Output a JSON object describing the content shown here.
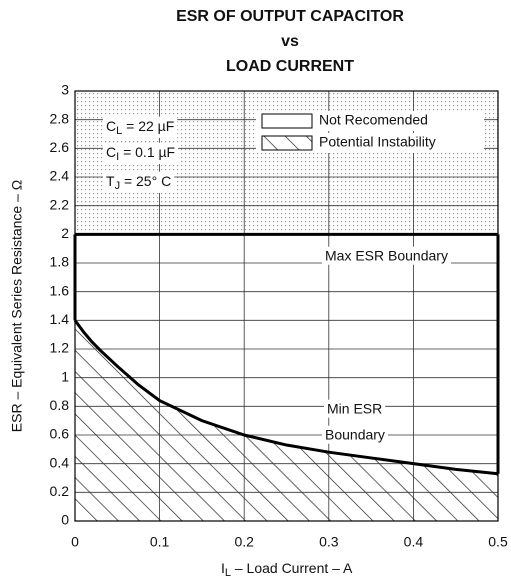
{
  "chart_data": {
    "type": "line",
    "title": [
      "ESR OF OUTPUT CAPACITOR",
      "vs",
      "LOAD CURRENT"
    ],
    "xlabel": {
      "main": "I",
      "sub": "L",
      "rest": " – Load Current – A"
    },
    "ylabel": "ESR – Equivalent Series Resistance – Ω",
    "xlim": [
      0,
      0.5
    ],
    "ylim": [
      0,
      3
    ],
    "xticks": [
      0,
      0.1,
      0.2,
      0.3,
      0.4,
      0.5
    ],
    "yticks": [
      0,
      0.2,
      0.4,
      0.6,
      0.8,
      1,
      1.2,
      1.4,
      1.6,
      1.8,
      2,
      2.2,
      2.4,
      2.6,
      2.8,
      3
    ],
    "grid": true,
    "series": [
      {
        "x": [
          0,
          0.5
        ],
        "values": [
          2,
          2
        ],
        "color": "#000000"
      },
      {
        "x": [
          0,
          0.01,
          0.02,
          0.03,
          0.05,
          0.075,
          0.1,
          0.15,
          0.2,
          0.25,
          0.3,
          0.35,
          0.4,
          0.45,
          0.5
        ],
        "values": [
          1.4,
          1.32,
          1.25,
          1.19,
          1.08,
          0.95,
          0.84,
          0.7,
          0.6,
          0.53,
          0.48,
          0.44,
          0.4,
          0.36,
          0.33
        ],
        "color": "#000000"
      }
    ],
    "legend": [
      {
        "label": "Not Recomended",
        "pattern": "dots"
      },
      {
        "label": "Potential Instability",
        "pattern": "hatch"
      }
    ],
    "conditions": [
      {
        "main": "C",
        "sub": "L",
        "rest": " = 22 µF"
      },
      {
        "main": "C",
        "sub": "I",
        "rest": " = 0.1 µF"
      },
      {
        "main": "T",
        "sub": "J",
        "rest": " = 25° C"
      }
    ],
    "annotations": [
      "Max ESR Boundary",
      "Min ESR",
      "Boundary"
    ]
  }
}
